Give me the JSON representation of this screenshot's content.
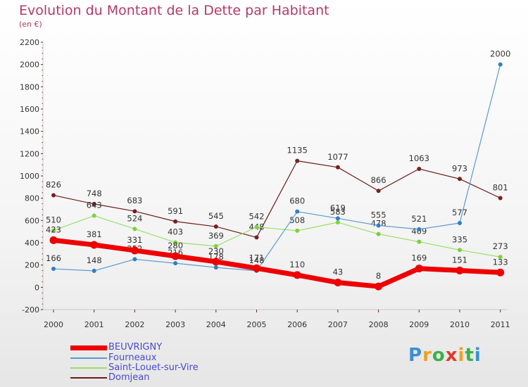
{
  "chart_data": {
    "type": "line",
    "title": "Evolution du Montant de la Dette par Habitant",
    "subtitle": "(en €)",
    "xlabel": "",
    "ylabel": "",
    "x": [
      "2000",
      "2001",
      "2002",
      "2003",
      "2004",
      "2005",
      "2006",
      "2007",
      "2008",
      "2009",
      "2010",
      "2011"
    ],
    "ylim": [
      -200,
      2200
    ],
    "yticks": [
      -200,
      0,
      200,
      400,
      600,
      800,
      1000,
      1200,
      1400,
      1600,
      1800,
      2000,
      2200
    ],
    "grid": false,
    "legend_position": "bottom-left",
    "series": [
      {
        "name": "Domjean",
        "color": "#6b1a1a",
        "marker": "#7a1f1f",
        "line_width": 1.2,
        "values": [
          826,
          748,
          683,
          591,
          545,
          448,
          1135,
          1077,
          866,
          1063,
          973,
          801
        ],
        "labels": [
          "826",
          "748",
          "683",
          "591",
          "545",
          "448",
          "1135",
          "1077",
          "866",
          "1063",
          "973",
          "801"
        ]
      },
      {
        "name": "Saint-Louet-sur-Vire",
        "color": "#99e06a",
        "marker": "#7dd13a",
        "line_width": 1.2,
        "values": [
          510,
          643,
          524,
          403,
          369,
          542,
          508,
          583,
          478,
          409,
          335,
          273
        ],
        "labels": [
          "510",
          "643",
          "524",
          "403",
          "369",
          "542",
          "508",
          "583",
          "478",
          "409",
          "335",
          "273"
        ]
      },
      {
        "name": "Fourneaux",
        "color": "#5a9ad0",
        "marker": "#2f7fc6",
        "line_width": 1.2,
        "values": [
          166,
          148,
          252,
          216,
          178,
          148,
          680,
          619,
          555,
          521,
          577,
          2000
        ],
        "labels": [
          "166",
          "148",
          "252",
          "216",
          "178",
          "148",
          "680",
          "619",
          "555",
          "521",
          "577",
          "2000"
        ]
      },
      {
        "name": "BEUVRIGNY",
        "color": "#ee0000",
        "marker": "#ee0000",
        "line_width": 7,
        "values": [
          423,
          381,
          331,
          280,
          230,
          171,
          110,
          43,
          8,
          169,
          151,
          133
        ],
        "labels": [
          "423",
          "381",
          "331",
          "280",
          "230",
          "171",
          "110",
          "43",
          "8",
          "169",
          "151",
          "133"
        ]
      }
    ]
  },
  "legend": [
    {
      "label": "BEUVRIGNY",
      "color": "#ee0000",
      "thickness": 7
    },
    {
      "label": "Fourneaux",
      "color": "#5a9ad0",
      "thickness": 2
    },
    {
      "label": "Saint-Louet-sur-Vire",
      "color": "#99e06a",
      "thickness": 2
    },
    {
      "label": "Domjean",
      "color": "#6b1a1a",
      "thickness": 2
    }
  ],
  "logo": {
    "letters": [
      "P",
      "r",
      "o",
      "x",
      "i",
      "t",
      "i"
    ],
    "colors": [
      "#3a8fd4",
      "#f0a020",
      "#3ab04a",
      "#e23a2a",
      "#f0a020",
      "#3ab04a",
      "#3a8fd4"
    ]
  }
}
